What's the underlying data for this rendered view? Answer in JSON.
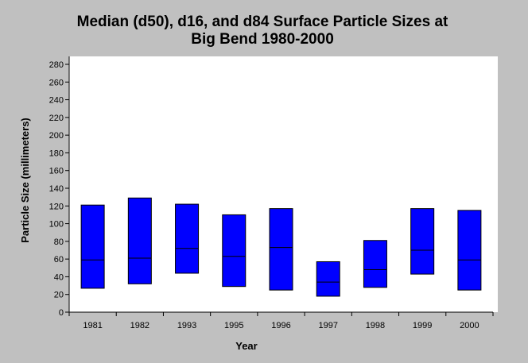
{
  "chart_data": {
    "type": "floating-bar",
    "title_lines": [
      "Median (d50), d16, and d84 Surface Particle Sizes at",
      "Big Bend 1980-2000"
    ],
    "xlabel": "Year",
    "ylabel": "Particle Size (millimeters)",
    "ylim": [
      0,
      280
    ],
    "ytick_step": 20,
    "grid": false,
    "bar_color": "#0000ff",
    "categories": [
      "1981",
      "1982",
      "1993",
      "1995",
      "1996",
      "1997",
      "1998",
      "1999",
      "2000"
    ],
    "d16": [
      27,
      32,
      44,
      29,
      25,
      18,
      28,
      43,
      25
    ],
    "d50": [
      59,
      61,
      72,
      63,
      73,
      34,
      48,
      70,
      59
    ],
    "d84": [
      121,
      129,
      122,
      110,
      117,
      57,
      81,
      117,
      115
    ]
  }
}
